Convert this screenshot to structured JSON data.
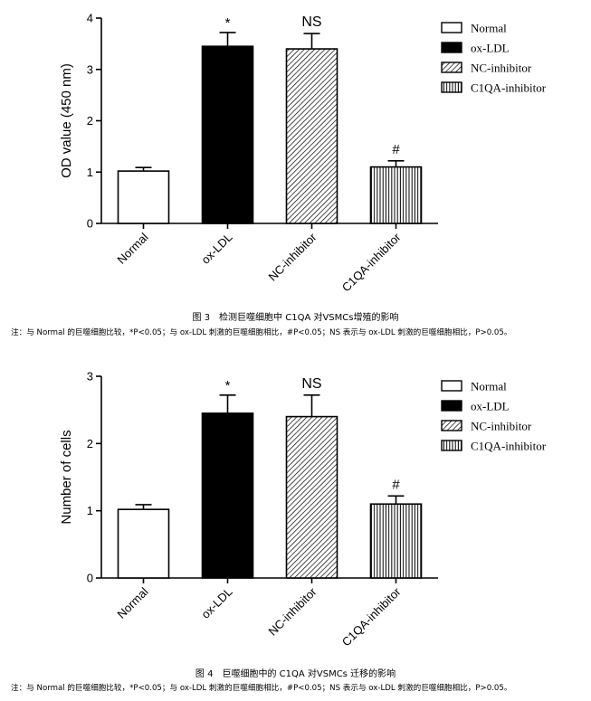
{
  "chart_data": [
    {
      "type": "bar",
      "categories": [
        "Normal",
        "ox-LDL",
        "NC-inhibitor",
        "C1QA-inhibitor"
      ],
      "values": [
        1.02,
        3.45,
        3.4,
        1.1
      ],
      "errors": [
        0.07,
        0.27,
        0.3,
        0.12
      ],
      "annotations": [
        "",
        "*",
        "NS",
        "#"
      ],
      "ylabel": "OD value (450 nm)",
      "ylim": [
        0,
        4
      ],
      "yticks": [
        "0",
        "1",
        "2",
        "3",
        "4"
      ],
      "legend": [
        "Normal",
        "ox-LDL",
        "NC-inhibitor",
        "C1QA-inhibitor"
      ],
      "legend_position": "top-right",
      "grid": false
    },
    {
      "type": "bar",
      "categories": [
        "Normal",
        "ox-LDL",
        "NC-inhibitor",
        "C1QA-inhibitor"
      ],
      "values": [
        1.02,
        2.45,
        2.4,
        1.1
      ],
      "errors": [
        0.07,
        0.27,
        0.32,
        0.12
      ],
      "annotations": [
        "",
        "*",
        "NS",
        "#"
      ],
      "ylabel": "Number of cells",
      "ylim": [
        0,
        3
      ],
      "yticks": [
        "0",
        "1",
        "2",
        "3"
      ],
      "legend": [
        "Normal",
        "ox-LDL",
        "NC-inhibitor",
        "C1QA-inhibitor"
      ],
      "legend_position": "top-right",
      "grid": false
    }
  ],
  "styles": {
    "bar_fills": [
      "white",
      "black",
      "diagonal-hatch",
      "vertical-hatch"
    ],
    "stroke_color": "#000000"
  },
  "captions": {
    "fig3": "图 3　检测巨噬细胞中 C1QA 对VSMCs增殖的影响",
    "fig3_note": "注：与 Normal 的巨噬细胞比较，*P<0.05；与 ox-LDL 刺激的巨噬细胞相比，#P<0.05；NS 表示与 ox-LDL 刺激的巨噬细胞相比，P>0.05。",
    "fig4": "图 4　巨噬细胞中的 C1QA 对VSMCs 迁移的影响",
    "fig4_note": "注：与 Normal 的巨噬细胞比较，*P<0.05；与 ox-LDL 刺激的巨噬细胞相比，#P<0.05；NS 表示与 ox-LDL 刺激的巨噬细胞相比，P>0.05。"
  }
}
